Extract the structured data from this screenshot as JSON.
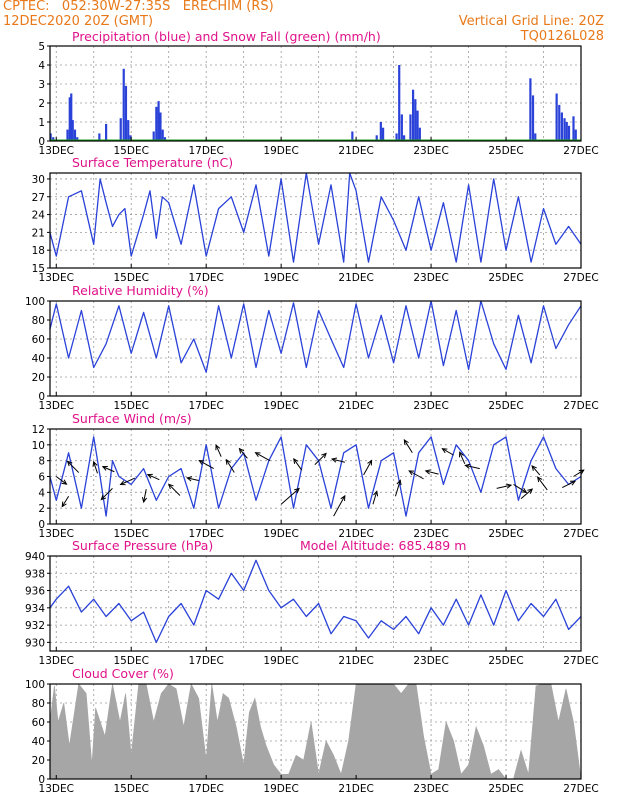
{
  "header": {
    "station": "CPTEC:   052:30W-27:35S   ERECHIM (RS)",
    "datetime": "12DEC2020 20Z (GMT)",
    "grid_note": "Vertical Grid Line: 20Z",
    "code": "TQ0126L028"
  },
  "colors": {
    "header": "#e8791a",
    "title": "#e0128a",
    "line": "#2a42d8",
    "snow": "#17a317",
    "cloud": "#a6a6a6",
    "grid": "#9a9a9a"
  },
  "x_axis": {
    "start_day": 12.833,
    "end_day": 27.0,
    "tick_days": [
      13,
      15,
      17,
      19,
      21,
      23,
      25,
      27
    ],
    "tick_labels": [
      "13DEC",
      "15DEC",
      "17DEC",
      "19DEC",
      "21DEC",
      "23DEC",
      "25DEC",
      "27DEC"
    ]
  },
  "chart_data": [
    {
      "type": "bar",
      "title": "Precipitation (blue) and Snow Fall (green) (mm/h)",
      "ylim": [
        0,
        5
      ],
      "yticks": [
        0,
        1,
        2,
        3,
        4,
        5
      ],
      "series": [
        {
          "name": "Precipitation",
          "points": [
            [
              12.85,
              0.4
            ],
            [
              12.92,
              0.2
            ],
            [
              13.3,
              0.6
            ],
            [
              13.36,
              2.3
            ],
            [
              13.4,
              2.5
            ],
            [
              13.44,
              1.1
            ],
            [
              13.5,
              0.6
            ],
            [
              13.56,
              0.2
            ],
            [
              14.15,
              0.4
            ],
            [
              14.33,
              0.9
            ],
            [
              14.72,
              1.2
            ],
            [
              14.8,
              3.8
            ],
            [
              14.86,
              2.9
            ],
            [
              14.92,
              1.1
            ],
            [
              14.98,
              0.3
            ],
            [
              15.6,
              0.5
            ],
            [
              15.67,
              1.8
            ],
            [
              15.73,
              2.1
            ],
            [
              15.78,
              1.5
            ],
            [
              15.84,
              0.6
            ],
            [
              15.9,
              0.2
            ],
            [
              20.9,
              0.5
            ],
            [
              21.55,
              0.3
            ],
            [
              21.66,
              1.0
            ],
            [
              21.72,
              0.7
            ],
            [
              22.08,
              0.4
            ],
            [
              22.15,
              4.0
            ],
            [
              22.22,
              1.4
            ],
            [
              22.28,
              0.3
            ],
            [
              22.45,
              1.4
            ],
            [
              22.52,
              2.7
            ],
            [
              22.58,
              2.2
            ],
            [
              22.64,
              1.6
            ],
            [
              22.7,
              0.7
            ],
            [
              25.65,
              3.3
            ],
            [
              25.72,
              2.4
            ],
            [
              25.78,
              0.4
            ],
            [
              26.35,
              2.5
            ],
            [
              26.42,
              1.9
            ],
            [
              26.49,
              1.5
            ],
            [
              26.56,
              1.2
            ],
            [
              26.62,
              1.0
            ],
            [
              26.68,
              0.8
            ],
            [
              26.8,
              1.3
            ],
            [
              26.86,
              0.6
            ]
          ]
        },
        {
          "name": "Snow Fall",
          "points": []
        }
      ]
    },
    {
      "type": "line",
      "title": "Surface Temperature (nC)",
      "ylim": [
        15,
        31
      ],
      "yticks": [
        15,
        18,
        21,
        24,
        27,
        30
      ],
      "x": [
        12.83,
        13.0,
        13.33,
        13.67,
        14.0,
        14.17,
        14.33,
        14.5,
        14.67,
        14.83,
        15.0,
        15.33,
        15.5,
        15.67,
        15.83,
        16.0,
        16.33,
        16.67,
        17.0,
        17.33,
        17.67,
        18.0,
        18.33,
        18.67,
        19.0,
        19.33,
        19.67,
        20.0,
        20.33,
        20.67,
        20.83,
        21.0,
        21.33,
        21.67,
        22.0,
        22.33,
        22.67,
        23.0,
        23.33,
        23.67,
        24.0,
        24.33,
        24.67,
        25.0,
        25.33,
        25.67,
        26.0,
        26.33,
        26.67,
        27.0
      ],
      "values": [
        21,
        17,
        27,
        28,
        19,
        30,
        26,
        22,
        24,
        25,
        17,
        24,
        28,
        20,
        27,
        26,
        19,
        29,
        17,
        25,
        27,
        21,
        29,
        17,
        30,
        16,
        31,
        19,
        29,
        16,
        31,
        28,
        16,
        27,
        23,
        18,
        27,
        18,
        26,
        16,
        29,
        16,
        30,
        18,
        27,
        16,
        25,
        19,
        22,
        19
      ]
    },
    {
      "type": "line",
      "title": "Relative Humidity (%)",
      "ylim": [
        0,
        100
      ],
      "yticks": [
        0,
        20,
        40,
        60,
        80,
        100
      ],
      "x": [
        12.83,
        13.0,
        13.33,
        13.67,
        14.0,
        14.33,
        14.67,
        15.0,
        15.33,
        15.67,
        16.0,
        16.33,
        16.67,
        17.0,
        17.33,
        17.67,
        18.0,
        18.33,
        18.67,
        19.0,
        19.33,
        19.67,
        20.0,
        20.33,
        20.67,
        21.0,
        21.33,
        21.67,
        22.0,
        22.33,
        22.67,
        23.0,
        23.33,
        23.67,
        24.0,
        24.33,
        24.67,
        25.0,
        25.33,
        25.67,
        26.0,
        26.33,
        26.67,
        27.0
      ],
      "values": [
        70,
        97,
        40,
        90,
        30,
        55,
        95,
        45,
        88,
        40,
        95,
        35,
        60,
        25,
        95,
        40,
        97,
        30,
        90,
        45,
        98,
        30,
        90,
        60,
        30,
        97,
        40,
        85,
        35,
        95,
        40,
        100,
        32,
        90,
        28,
        100,
        55,
        28,
        85,
        35,
        95,
        50,
        75,
        95
      ]
    },
    {
      "type": "line",
      "title": "Surface Wind (m/s)",
      "ylim": [
        0,
        12
      ],
      "yticks": [
        0,
        2,
        4,
        6,
        8,
        10,
        12
      ],
      "x": [
        12.83,
        13.0,
        13.33,
        13.67,
        14.0,
        14.17,
        14.33,
        14.5,
        14.67,
        15.0,
        15.33,
        15.67,
        16.0,
        16.33,
        16.67,
        17.0,
        17.33,
        17.67,
        18.0,
        18.33,
        18.67,
        19.0,
        19.33,
        19.67,
        20.0,
        20.33,
        20.67,
        21.0,
        21.33,
        21.67,
        22.0,
        22.33,
        22.67,
        23.0,
        23.33,
        23.67,
        24.0,
        24.33,
        24.67,
        25.0,
        25.33,
        25.67,
        26.0,
        26.33,
        26.67,
        27.0
      ],
      "values": [
        6,
        3,
        9,
        2,
        11,
        6,
        1,
        8,
        6,
        5,
        7,
        3,
        6,
        7,
        2,
        10,
        2,
        7,
        9,
        3,
        8,
        11,
        2,
        10,
        8,
        2,
        9,
        10,
        2,
        8,
        9,
        1,
        9,
        11,
        5,
        10,
        8,
        4,
        10,
        11,
        3,
        8,
        11,
        7,
        5,
        6
      ],
      "wind_arrows": [
        [
          13.0,
          6,
          0.8,
          -0.6,
          0.4
        ],
        [
          13.33,
          3.5,
          -0.5,
          -0.8,
          0.4
        ],
        [
          13.6,
          6.5,
          -0.7,
          0.7,
          0.5
        ],
        [
          14.1,
          6.4,
          -0.3,
          0.9,
          0.4
        ],
        [
          14.5,
          4.5,
          -0.7,
          -0.7,
          0.5
        ],
        [
          14.55,
          6.6,
          -0.9,
          0.4,
          0.4
        ],
        [
          15.1,
          5.8,
          -0.9,
          -0.4,
          0.5
        ],
        [
          15.4,
          4.4,
          -0.2,
          -1.0,
          0.4
        ],
        [
          15.75,
          5.6,
          -0.9,
          0.4,
          0.4
        ],
        [
          16.3,
          3.6,
          -0.7,
          0.7,
          0.5
        ],
        [
          16.8,
          5.5,
          -0.9,
          0.2,
          0.4
        ],
        [
          17.2,
          7.0,
          -0.9,
          0.5,
          0.5
        ],
        [
          17.4,
          8.5,
          -0.4,
          0.9,
          0.4
        ],
        [
          17.75,
          6.5,
          -0.5,
          0.8,
          0.5
        ],
        [
          18.1,
          8.3,
          -0.5,
          0.6,
          0.5
        ],
        [
          18.7,
          8.0,
          -0.9,
          0.5,
          0.5
        ],
        [
          19.0,
          2.5,
          0.8,
          0.7,
          0.7
        ],
        [
          19.55,
          6.8,
          -0.5,
          0.7,
          0.5
        ],
        [
          19.9,
          7.5,
          0.7,
          0.7,
          0.5
        ],
        [
          20.4,
          1.0,
          0.5,
          0.9,
          0.7
        ],
        [
          20.7,
          7.8,
          -0.8,
          0.2,
          0.5
        ],
        [
          21.2,
          6.2,
          0.5,
          0.9,
          0.5
        ],
        [
          21.45,
          2.5,
          0.3,
          1.0,
          0.4
        ],
        [
          22.05,
          3.5,
          0.3,
          1.0,
          0.5
        ],
        [
          22.5,
          9.0,
          -0.5,
          0.8,
          0.5
        ],
        [
          22.8,
          5.7,
          -0.9,
          0.5,
          0.5
        ],
        [
          23.2,
          6.3,
          -0.8,
          0.2,
          0.5
        ],
        [
          23.6,
          8.7,
          -0.7,
          0.4,
          0.5
        ],
        [
          23.9,
          7.6,
          -0.4,
          0.9,
          0.4
        ],
        [
          24.3,
          7.0,
          -0.9,
          0.2,
          0.5
        ],
        [
          24.75,
          4.5,
          0.9,
          0.2,
          0.5
        ],
        [
          25.2,
          5.0,
          0.8,
          -0.5,
          0.5
        ],
        [
          25.4,
          3.2,
          0.7,
          0.6,
          0.5
        ],
        [
          25.9,
          6.2,
          -0.6,
          0.7,
          0.4
        ],
        [
          26.1,
          4.3,
          -0.6,
          0.8,
          0.5
        ],
        [
          26.5,
          4.6,
          0.8,
          0.4,
          0.5
        ],
        [
          26.8,
          6.0,
          0.8,
          0.5,
          0.4
        ]
      ]
    },
    {
      "type": "line",
      "title": "Surface Pressure (hPa)",
      "annotation": "Model Altitude: 685.489 m",
      "ylim": [
        929,
        940
      ],
      "yticks": [
        930,
        932,
        934,
        936,
        938,
        940
      ],
      "x": [
        12.83,
        13.0,
        13.33,
        13.67,
        14.0,
        14.33,
        14.67,
        15.0,
        15.33,
        15.67,
        16.0,
        16.33,
        16.67,
        17.0,
        17.33,
        17.67,
        18.0,
        18.33,
        18.67,
        19.0,
        19.33,
        19.67,
        20.0,
        20.33,
        20.67,
        21.0,
        21.33,
        21.67,
        22.0,
        22.33,
        22.67,
        23.0,
        23.33,
        23.67,
        24.0,
        24.33,
        24.67,
        25.0,
        25.33,
        25.67,
        26.0,
        26.33,
        26.67,
        27.0
      ],
      "values": [
        934,
        935,
        936.5,
        933.5,
        935,
        933,
        934.5,
        932.5,
        933.5,
        930,
        933,
        934.5,
        932,
        936,
        935,
        938,
        936,
        939.5,
        936,
        934,
        935,
        933,
        934.5,
        931,
        933,
        932.5,
        930.5,
        932.5,
        931.5,
        933,
        931,
        934,
        932,
        935,
        932,
        935.5,
        932,
        936,
        932.5,
        934.5,
        933,
        935,
        931.5,
        933
      ]
    },
    {
      "type": "area",
      "title": "Cloud Cover (%)",
      "ylim": [
        0,
        100
      ],
      "yticks": [
        0,
        20,
        40,
        60,
        80,
        100
      ],
      "x": [
        12.83,
        12.95,
        13.05,
        13.2,
        13.35,
        13.6,
        13.8,
        13.95,
        14.05,
        14.3,
        14.5,
        14.7,
        14.85,
        15.0,
        15.2,
        15.4,
        15.6,
        15.8,
        16.0,
        16.2,
        16.4,
        16.6,
        16.8,
        17.0,
        17.15,
        17.3,
        17.45,
        17.6,
        17.8,
        18.0,
        18.15,
        18.3,
        18.45,
        18.6,
        18.8,
        19.0,
        19.2,
        19.4,
        19.6,
        19.8,
        20.0,
        20.2,
        20.4,
        20.6,
        20.8,
        21.0,
        21.2,
        21.4,
        21.6,
        21.8,
        22.0,
        22.2,
        22.4,
        22.6,
        22.8,
        23.0,
        23.2,
        23.4,
        23.6,
        23.8,
        24.0,
        24.2,
        24.4,
        24.6,
        24.8,
        25.0,
        25.2,
        25.4,
        25.6,
        25.8,
        26.0,
        26.2,
        26.4,
        26.6,
        26.8,
        27.0
      ],
      "values": [
        60,
        98,
        60,
        80,
        35,
        100,
        90,
        15,
        75,
        45,
        100,
        60,
        90,
        25,
        100,
        100,
        60,
        90,
        100,
        95,
        55,
        100,
        85,
        20,
        100,
        60,
        90,
        85,
        55,
        15,
        70,
        85,
        55,
        35,
        15,
        5,
        5,
        25,
        20,
        60,
        5,
        40,
        25,
        5,
        40,
        100,
        100,
        100,
        100,
        100,
        100,
        90,
        100,
        100,
        45,
        5,
        10,
        60,
        40,
        5,
        15,
        55,
        35,
        5,
        10,
        0,
        0,
        30,
        5,
        98,
        100,
        100,
        60,
        95,
        60,
        0
      ]
    }
  ]
}
